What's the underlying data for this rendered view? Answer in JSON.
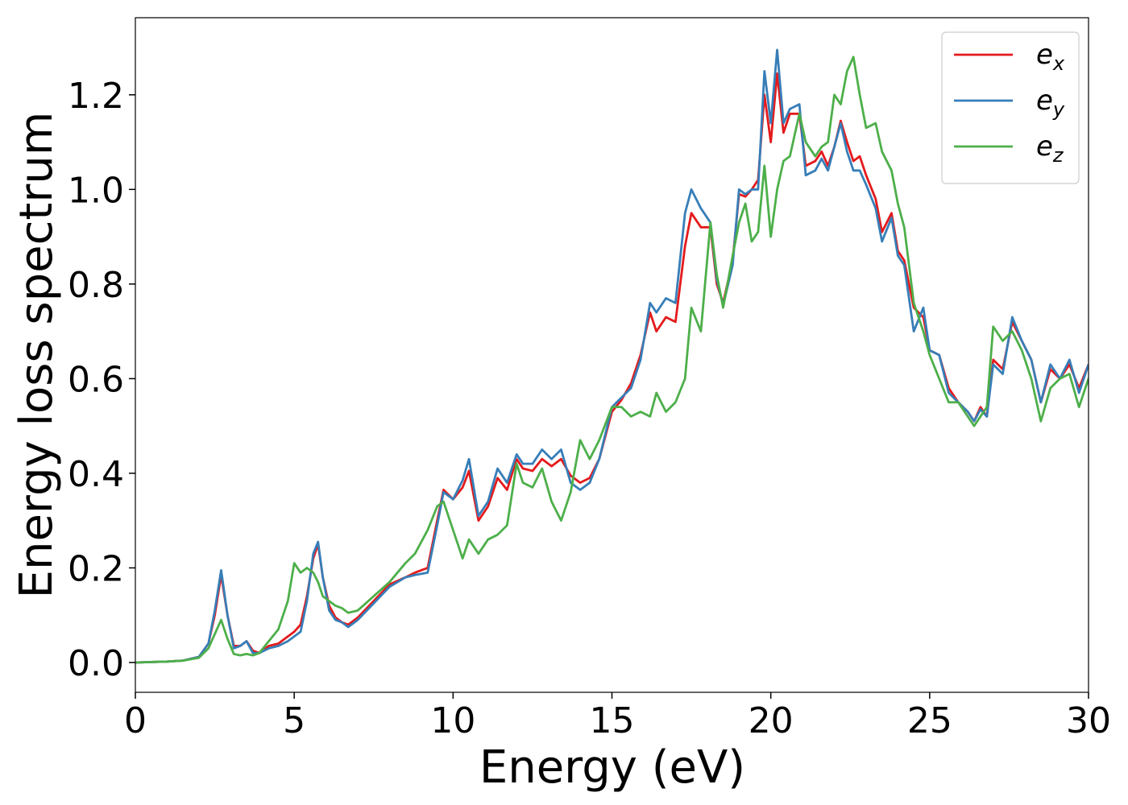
{
  "chart_data": {
    "type": "line",
    "xlabel": "Energy (eV)",
    "ylabel": "Energy loss spectrum",
    "x": [
      0,
      1,
      1.5,
      2,
      2.3,
      2.5,
      2.7,
      2.9,
      3.1,
      3.3,
      3.5,
      3.7,
      3.9,
      4.2,
      4.5,
      4.8,
      5.0,
      5.2,
      5.4,
      5.6,
      5.75,
      5.9,
      6.1,
      6.3,
      6.5,
      6.7,
      7.0,
      7.5,
      8.0,
      8.5,
      8.8,
      9.2,
      9.5,
      9.7,
      10.0,
      10.3,
      10.5,
      10.8,
      11.1,
      11.4,
      11.7,
      12.0,
      12.2,
      12.5,
      12.8,
      13.1,
      13.4,
      13.7,
      14.0,
      14.3,
      14.6,
      15.0,
      15.3,
      15.6,
      15.9,
      16.2,
      16.4,
      16.7,
      17.0,
      17.3,
      17.5,
      17.8,
      18.1,
      18.3,
      18.5,
      18.8,
      19.0,
      19.2,
      19.4,
      19.6,
      19.8,
      20.0,
      20.2,
      20.4,
      20.6,
      20.9,
      21.1,
      21.4,
      21.6,
      21.8,
      22.0,
      22.2,
      22.4,
      22.6,
      22.8,
      23.0,
      23.3,
      23.5,
      23.8,
      24.0,
      24.2,
      24.5,
      24.8,
      25.0,
      25.3,
      25.6,
      25.9,
      26.2,
      26.4,
      26.6,
      26.8,
      27.0,
      27.3,
      27.6,
      27.9,
      28.2,
      28.5,
      28.8,
      29.1,
      29.4,
      29.7,
      30.0
    ],
    "series": [
      {
        "name": "e_x",
        "color": "#e41a1c",
        "values": [
          0,
          0.002,
          0.004,
          0.012,
          0.04,
          0.1,
          0.185,
          0.1,
          0.035,
          0.035,
          0.045,
          0.025,
          0.02,
          0.035,
          0.04,
          0.055,
          0.065,
          0.08,
          0.14,
          0.22,
          0.25,
          0.18,
          0.12,
          0.095,
          0.085,
          0.08,
          0.095,
          0.13,
          0.165,
          0.18,
          0.19,
          0.2,
          0.3,
          0.365,
          0.345,
          0.37,
          0.405,
          0.3,
          0.33,
          0.39,
          0.365,
          0.43,
          0.41,
          0.405,
          0.43,
          0.415,
          0.43,
          0.395,
          0.38,
          0.39,
          0.43,
          0.53,
          0.555,
          0.59,
          0.65,
          0.74,
          0.7,
          0.73,
          0.72,
          0.88,
          0.95,
          0.92,
          0.92,
          0.8,
          0.76,
          0.85,
          0.99,
          0.985,
          1.0,
          1.02,
          1.2,
          1.1,
          1.245,
          1.12,
          1.16,
          1.16,
          1.05,
          1.06,
          1.08,
          1.05,
          1.09,
          1.145,
          1.1,
          1.06,
          1.07,
          1.03,
          0.98,
          0.91,
          0.95,
          0.87,
          0.85,
          0.75,
          0.73,
          0.66,
          0.65,
          0.58,
          0.55,
          0.53,
          0.51,
          0.54,
          0.52,
          0.64,
          0.62,
          0.72,
          0.68,
          0.64,
          0.55,
          0.62,
          0.6,
          0.63,
          0.58,
          0.63
        ]
      },
      {
        "name": "e_y",
        "color": "#377eb8",
        "values": [
          0,
          0.002,
          0.004,
          0.012,
          0.04,
          0.11,
          0.195,
          0.1,
          0.03,
          0.035,
          0.045,
          0.02,
          0.02,
          0.03,
          0.035,
          0.045,
          0.055,
          0.065,
          0.13,
          0.23,
          0.255,
          0.18,
          0.11,
          0.09,
          0.085,
          0.075,
          0.09,
          0.125,
          0.16,
          0.18,
          0.185,
          0.19,
          0.29,
          0.36,
          0.345,
          0.385,
          0.43,
          0.31,
          0.34,
          0.41,
          0.38,
          0.44,
          0.42,
          0.42,
          0.45,
          0.43,
          0.45,
          0.38,
          0.365,
          0.38,
          0.43,
          0.54,
          0.56,
          0.58,
          0.64,
          0.76,
          0.74,
          0.77,
          0.76,
          0.95,
          1.0,
          0.96,
          0.93,
          0.81,
          0.755,
          0.84,
          1.0,
          0.99,
          1.0,
          1.0,
          1.25,
          1.14,
          1.295,
          1.14,
          1.17,
          1.18,
          1.03,
          1.04,
          1.065,
          1.04,
          1.09,
          1.14,
          1.08,
          1.04,
          1.04,
          1.01,
          0.96,
          0.89,
          0.94,
          0.86,
          0.84,
          0.7,
          0.75,
          0.66,
          0.65,
          0.57,
          0.55,
          0.53,
          0.51,
          0.535,
          0.52,
          0.63,
          0.61,
          0.73,
          0.68,
          0.64,
          0.55,
          0.63,
          0.6,
          0.64,
          0.57,
          0.63
        ]
      },
      {
        "name": "e_z",
        "color": "#4daf4a",
        "values": [
          0,
          0.002,
          0.004,
          0.01,
          0.03,
          0.06,
          0.09,
          0.05,
          0.018,
          0.015,
          0.018,
          0.015,
          0.02,
          0.045,
          0.07,
          0.13,
          0.21,
          0.19,
          0.2,
          0.19,
          0.17,
          0.14,
          0.13,
          0.12,
          0.115,
          0.105,
          0.11,
          0.14,
          0.17,
          0.21,
          0.23,
          0.28,
          0.33,
          0.34,
          0.28,
          0.22,
          0.26,
          0.23,
          0.26,
          0.27,
          0.29,
          0.42,
          0.38,
          0.37,
          0.41,
          0.34,
          0.3,
          0.36,
          0.47,
          0.43,
          0.47,
          0.54,
          0.54,
          0.52,
          0.53,
          0.52,
          0.57,
          0.53,
          0.55,
          0.6,
          0.75,
          0.7,
          0.93,
          0.82,
          0.75,
          0.86,
          0.93,
          0.97,
          0.89,
          0.91,
          1.05,
          0.9,
          1.0,
          1.06,
          1.07,
          1.16,
          1.1,
          1.07,
          1.09,
          1.1,
          1.2,
          1.18,
          1.25,
          1.28,
          1.2,
          1.13,
          1.14,
          1.08,
          1.04,
          0.97,
          0.92,
          0.76,
          0.7,
          0.65,
          0.6,
          0.55,
          0.55,
          0.52,
          0.5,
          0.52,
          0.54,
          0.71,
          0.68,
          0.7,
          0.66,
          0.6,
          0.51,
          0.58,
          0.6,
          0.61,
          0.54,
          0.6
        ]
      }
    ],
    "xlim": [
      0,
      30
    ],
    "xticks": [
      0,
      5,
      10,
      15,
      20,
      25,
      30
    ],
    "ylim": [
      -0.063,
      1.363
    ],
    "yticks": [
      {
        "value": 0,
        "label": "0.0"
      },
      {
        "value": 0.2,
        "label": "0.2"
      },
      {
        "value": 0.4,
        "label": "0.4"
      },
      {
        "value": 0.6,
        "label": "0.6"
      },
      {
        "value": 0.8,
        "label": "0.8"
      },
      {
        "value": 1.0,
        "label": "1.0"
      },
      {
        "value": 1.2,
        "label": "1.2"
      }
    ],
    "grid": false,
    "legend": "upper right"
  }
}
